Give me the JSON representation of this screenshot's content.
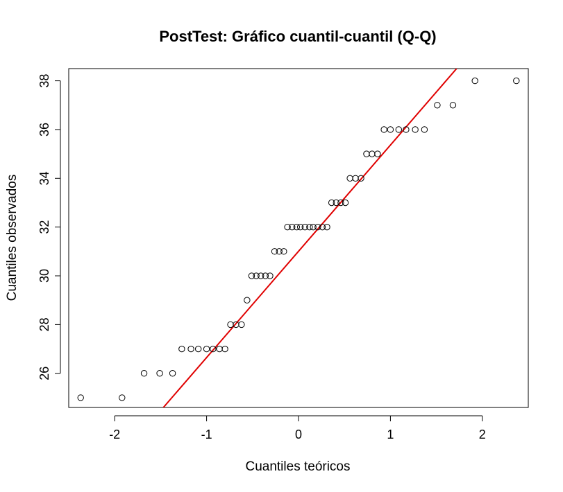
{
  "chart_data": {
    "type": "scatter",
    "title": "PostTest: Gráfico cuantil-cuantil (Q-Q)",
    "xlabel": "Cuantiles teóricos",
    "ylabel": "Cuantiles observados",
    "xlim": [
      -2.5,
      2.5
    ],
    "ylim": [
      24.6,
      38.5
    ],
    "x_ticks": [
      -2,
      -1,
      0,
      1,
      2
    ],
    "x_tick_labels": [
      "-2",
      "-1",
      "0",
      "1",
      "2"
    ],
    "y_ticks": [
      26,
      28,
      30,
      32,
      34,
      36,
      38
    ],
    "y_tick_labels": [
      "26",
      "28",
      "30",
      "32",
      "34",
      "36",
      "38"
    ],
    "grid": false,
    "points": {
      "x": [
        -2.37,
        -1.92,
        -1.68,
        -1.51,
        -1.37,
        -1.27,
        -1.17,
        -1.09,
        -1.0,
        -0.93,
        -0.86,
        -0.8,
        -0.74,
        -0.68,
        -0.62,
        -0.56,
        -0.51,
        -0.46,
        -0.41,
        -0.36,
        -0.31,
        -0.26,
        -0.21,
        -0.16,
        -0.12,
        -0.07,
        -0.02,
        0.02,
        0.07,
        0.12,
        0.16,
        0.21,
        0.26,
        0.31,
        0.36,
        0.41,
        0.46,
        0.51,
        0.56,
        0.62,
        0.68,
        0.74,
        0.8,
        0.86,
        0.93,
        1.0,
        1.09,
        1.17,
        1.27,
        1.37,
        1.51,
        1.68,
        1.92,
        2.37
      ],
      "y": [
        25,
        25,
        26,
        26,
        26,
        27,
        27,
        27,
        27,
        27,
        27,
        27,
        28,
        28,
        28,
        29,
        30,
        30,
        30,
        30,
        30,
        31,
        31,
        31,
        32,
        32,
        32,
        32,
        32,
        32,
        32,
        32,
        32,
        32,
        33,
        33,
        33,
        33,
        34,
        34,
        34,
        35,
        35,
        35,
        36,
        36,
        36,
        36,
        36,
        36,
        37,
        37,
        38,
        38
      ],
      "color": "#000000"
    },
    "reference_line": {
      "x": [
        -1.47,
        1.72
      ],
      "y": [
        24.6,
        38.5
      ],
      "color": "#e00000"
    }
  }
}
